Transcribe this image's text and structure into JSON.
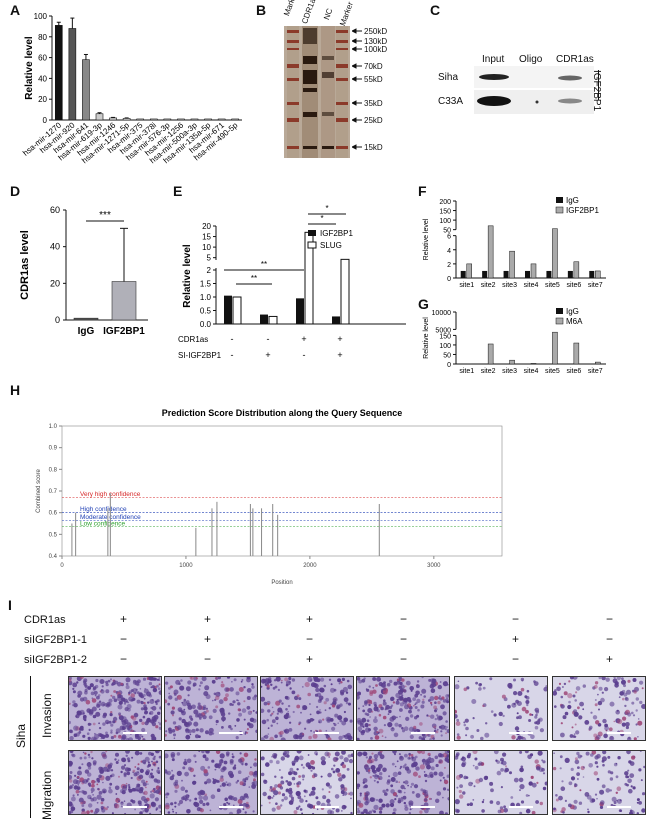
{
  "panels": {
    "A": {
      "letter": "A",
      "chart_data": {
        "type": "bar",
        "ylabel": "Relative level",
        "ylim": [
          0,
          100
        ],
        "yticks": [
          "0",
          "20",
          "40",
          "60",
          "80",
          "100"
        ],
        "categories": [
          "hsa-mir-1270",
          "hsa-mir-920",
          "hsa-mir-641",
          "hsa-mir-619-3p",
          "hsa-mir-1246",
          "hsa-mir-1271-5p",
          "hsa-mir-375",
          "hsa-mir-378i",
          "hsa-mir-576-3p",
          "hsa-mir-1256",
          "hsa-mir-500a-3p",
          "hsa-mir-135a-5p",
          "hsa-mir-671",
          "hsa-mir-490-5p"
        ],
        "values": [
          91,
          88,
          58,
          6,
          2,
          1.5,
          1,
          1,
          1,
          1,
          1,
          1,
          1,
          1
        ],
        "errors": [
          3,
          10,
          5,
          1,
          0.5,
          0.5,
          0,
          0,
          0,
          0,
          0,
          0,
          0,
          0
        ],
        "colors": [
          "#111111",
          "#555555",
          "#888888",
          "#cccccc",
          "#dddddd",
          "#eeeeee",
          "#eeeeee",
          "#eeeeee",
          "#eeeeee",
          "#eeeeee",
          "#eeeeee",
          "#eeeeee",
          "#eeeeee",
          "#eeeeee"
        ]
      }
    },
    "B": {
      "letter": "B",
      "lanes": [
        "Marker",
        "CDR1as",
        "NC",
        "Marker"
      ],
      "markers": [
        "250kD",
        "130kD",
        "100kD",
        "70kD",
        "55kD",
        "35kD",
        "25kD",
        "15kD"
      ]
    },
    "C": {
      "letter": "C",
      "columns": [
        "Input",
        "Oligo",
        "CDR1as"
      ],
      "rows": [
        "Siha",
        "C33A"
      ],
      "side_label": "IGF2BP1"
    },
    "D": {
      "letter": "D",
      "chart_data": {
        "type": "bar",
        "ylabel": "CDR1as level",
        "ylim": [
          0,
          60
        ],
        "yticks": [
          "0",
          "20",
          "40",
          "60"
        ],
        "categories": [
          "IgG",
          "IGF2BP1"
        ],
        "values": [
          1,
          21
        ],
        "errors": [
          0,
          29
        ],
        "significance": "***"
      }
    },
    "E": {
      "letter": "E",
      "chart_data": {
        "type": "bar",
        "ylabel": "Relative level",
        "yticks": [
          "0.0",
          "0.5",
          "1.0",
          "1.5",
          "2",
          "5",
          "10",
          "15",
          "20"
        ],
        "legend": [
          "IGF2BP1",
          "SLUG"
        ],
        "groups": [
          {
            "IGF2BP1": 1.05,
            "SLUG": 1.0
          },
          {
            "IGF2BP1": 0.35,
            "SLUG": 0.28
          },
          {
            "IGF2BP1": 0.95,
            "SLUG": 17
          },
          {
            "IGF2BP1": 0.28,
            "SLUG": 4.2
          }
        ],
        "row1_label": "CDR1as",
        "row1_values": [
          "-",
          "-",
          "+",
          "+"
        ],
        "row2_label": "SI-IGF2BP1",
        "row2_values": [
          "-",
          "+",
          "-",
          "+"
        ],
        "sig": [
          "**",
          "**",
          "*",
          "*"
        ]
      }
    },
    "F": {
      "letter": "F",
      "chart_data": {
        "type": "bar",
        "ylabel": "Relative level",
        "yticks": [
          "0",
          "2",
          "4",
          "6",
          "50",
          "100",
          "150",
          "200"
        ],
        "legend": [
          "IgG",
          "IGF2BP1"
        ],
        "categories": [
          "site1",
          "site2",
          "site3",
          "site4",
          "site5",
          "site6",
          "site7"
        ],
        "series": [
          {
            "name": "IgG",
            "values": [
              1,
              1,
              1,
              1,
              1,
              1,
              1
            ]
          },
          {
            "name": "IGF2BP1",
            "values": [
              2,
              70,
              3.8,
              2,
              55,
              2.3,
              1
            ]
          }
        ]
      }
    },
    "G": {
      "letter": "G",
      "chart_data": {
        "type": "bar",
        "ylabel": "Relative level",
        "yticks": [
          "0",
          "50",
          "100",
          "150",
          "5000",
          "10000"
        ],
        "legend": [
          "IgG",
          "M6A"
        ],
        "categories": [
          "site1",
          "site2",
          "site3",
          "site4",
          "site5",
          "site6",
          "site7"
        ],
        "series": [
          {
            "name": "IgG",
            "values": [
              1,
              1,
              1,
              1,
              1,
              1,
              1
            ]
          },
          {
            "name": "M6A",
            "values": [
              1,
              105,
              20,
              3,
              4200,
              110,
              10
            ]
          }
        ]
      }
    },
    "H": {
      "letter": "H",
      "chart_data": {
        "type": "line",
        "title": "Prediction Score Distribution along the Query Sequence",
        "xlabel": "Position",
        "ylabel": "Combined score",
        "xlim": [
          0,
          3550
        ],
        "ylim": [
          0.4,
          1.0
        ],
        "xticks": [
          "0",
          "1000",
          "2000",
          "3000"
        ],
        "yticks": [
          "0.4",
          "0.5",
          "0.6",
          "0.7",
          "0.8",
          "0.9",
          "1.0"
        ],
        "thresholds": [
          {
            "label": "Very high confidence",
            "value": 0.67,
            "color": "#d62728"
          },
          {
            "label": "High confidence",
            "value": 0.6,
            "color": "#1f3fb4"
          },
          {
            "label": "Moderate confidence",
            "value": 0.565,
            "color": "#1f3fb4"
          },
          {
            "label": "Low confidence",
            "value": 0.535,
            "color": "#2ca02c"
          }
        ],
        "peaks": [
          {
            "x": 80,
            "y": 0.55
          },
          {
            "x": 110,
            "y": 0.6
          },
          {
            "x": 370,
            "y": 0.62
          },
          {
            "x": 390,
            "y": 0.69
          },
          {
            "x": 1080,
            "y": 0.53
          },
          {
            "x": 1210,
            "y": 0.62
          },
          {
            "x": 1250,
            "y": 0.65
          },
          {
            "x": 1520,
            "y": 0.64
          },
          {
            "x": 1540,
            "y": 0.62
          },
          {
            "x": 1610,
            "y": 0.62
          },
          {
            "x": 1700,
            "y": 0.64
          },
          {
            "x": 1740,
            "y": 0.59
          },
          {
            "x": 2560,
            "y": 0.64
          }
        ]
      }
    },
    "I": {
      "letter": "I",
      "row_labels": [
        "CDR1as",
        "siIGF2BP1-1",
        "siIGF2BP1-2"
      ],
      "conditions": [
        [
          "+",
          "+",
          "+",
          "−",
          "−",
          "−"
        ],
        [
          "−",
          "+",
          "−",
          "−",
          "+",
          "−"
        ],
        [
          "−",
          "−",
          "+",
          "−",
          "−",
          "+"
        ]
      ],
      "cell_line": "Siha",
      "assays": [
        "Invasion",
        "Migration"
      ],
      "image_colors": {
        "dense": "#5b3f8f",
        "sparse": "#d8d6e8"
      }
    }
  }
}
